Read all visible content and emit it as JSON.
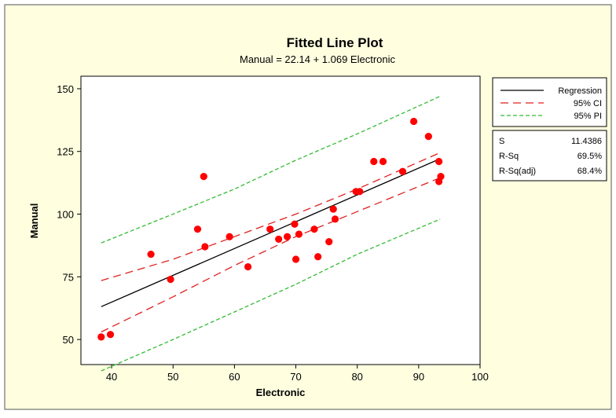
{
  "chart_data": {
    "type": "scatter",
    "title": "Fitted Line Plot",
    "subtitle": "Manual =  22.14 + 1.069 Electronic",
    "xlabel": "Electronic",
    "ylabel": "Manual",
    "xlim": [
      35,
      100
    ],
    "ylim": [
      40,
      155
    ],
    "xticks": [
      40,
      50,
      60,
      70,
      80,
      90,
      100
    ],
    "yticks": [
      50,
      75,
      100,
      125,
      150
    ],
    "grid": false,
    "legend_position": "right",
    "legend": [
      {
        "label": "Regression",
        "style": "solid",
        "color": "#000000"
      },
      {
        "label": "95% CI",
        "style": "long-dash",
        "color": "#e02020"
      },
      {
        "label": "95% PI",
        "style": "short-dash",
        "color": "#33bb33"
      }
    ],
    "stats": [
      {
        "label": "S",
        "value": "11.4386"
      },
      {
        "label": "R-Sq",
        "value": "69.5%"
      },
      {
        "label": "R-Sq(adj)",
        "value": "68.4%"
      }
    ],
    "regression": {
      "intercept": 22.14,
      "slope": 1.069
    },
    "ci_upper": {
      "x": [
        38.3,
        50,
        60,
        70,
        80,
        93.5
      ],
      "y": [
        73.5,
        82,
        91,
        100,
        110,
        124.5
      ]
    },
    "ci_lower": {
      "x": [
        38.3,
        50,
        60,
        70,
        80,
        93.5
      ],
      "y": [
        53,
        67,
        79.5,
        91,
        101,
        114.5
      ]
    },
    "pi_upper": {
      "x": [
        38.3,
        50,
        60,
        70,
        80,
        93.5
      ],
      "y": [
        88.5,
        100,
        110,
        121.5,
        132,
        147
      ]
    },
    "pi_lower": {
      "x": [
        38.3,
        50,
        60,
        70,
        80,
        93.5
      ],
      "y": [
        37.5,
        50,
        61,
        72,
        84,
        98
      ]
    },
    "points": {
      "x": [
        38.3,
        39.8,
        46.4,
        49.6,
        54,
        55,
        55.2,
        59.2,
        62.2,
        65.8,
        67.2,
        68.6,
        69.8,
        70,
        70.5,
        73,
        73.6,
        75.4,
        76.1,
        76.4,
        79.8,
        80.4,
        82.7,
        84.2,
        87.4,
        89.2,
        91.6,
        93.3,
        93.3,
        93.6
      ],
      "y": [
        51,
        52,
        84,
        74,
        94,
        115,
        87,
        91,
        79,
        94,
        90,
        91,
        96,
        82,
        92,
        94,
        83,
        89,
        102,
        98,
        109,
        109,
        121,
        121,
        117,
        137,
        131,
        121,
        113,
        115
      ]
    },
    "colors": {
      "points": "#ff0000",
      "regression": "#000000",
      "ci": "#e02020",
      "pi": "#33bb33",
      "frame_bg": "#ffffe0"
    }
  }
}
